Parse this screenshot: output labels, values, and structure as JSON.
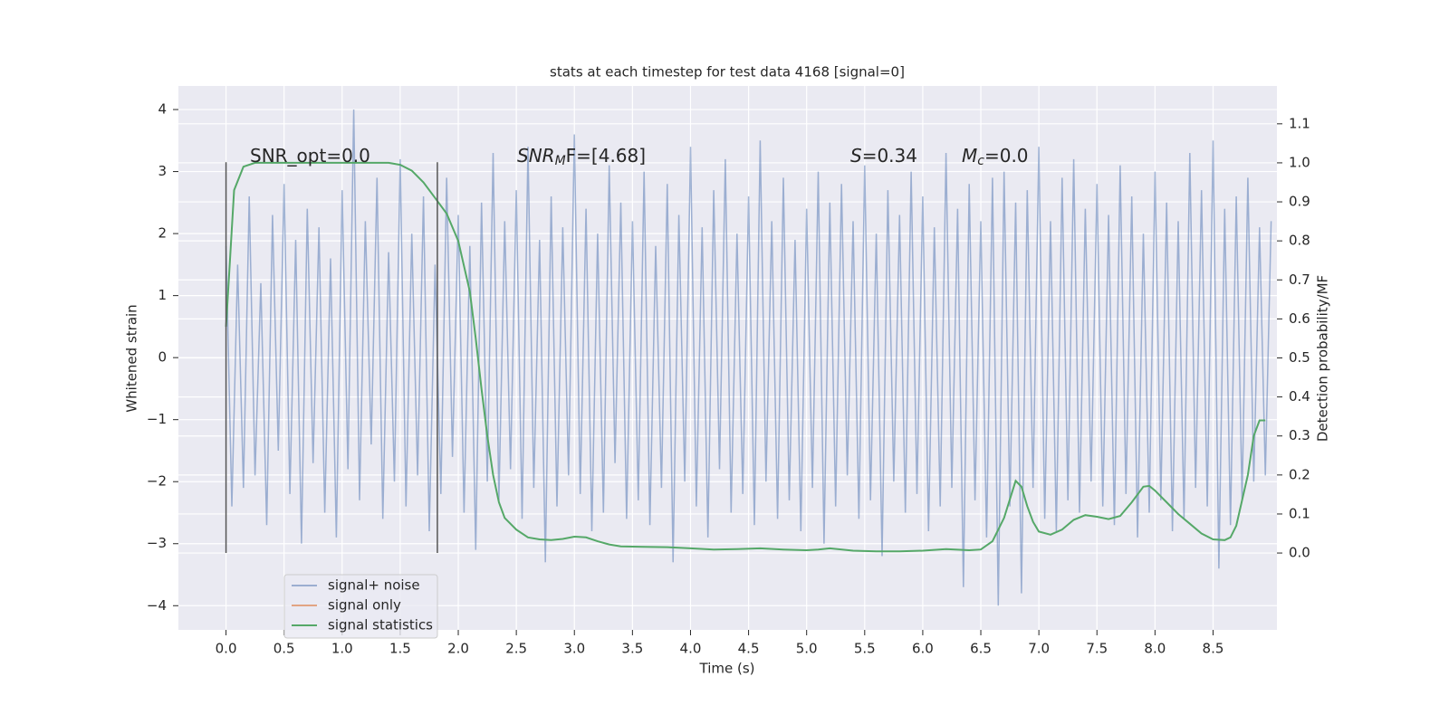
{
  "chart_data": {
    "type": "line",
    "title": "stats at each timestep for test data 4168 [signal=0]",
    "xlabel": "Time (s)",
    "ylabel": "Whitened strain",
    "y2label": "Detection probability/MF",
    "xlim": [
      -0.41,
      9.05
    ],
    "ylim": [
      -4.39,
      4.38
    ],
    "y2lim": [
      -0.197,
      1.197
    ],
    "xticks": [
      {
        "value": 0,
        "label": "0.0"
      },
      0.5,
      {
        "value": 1,
        "label": "1.0"
      },
      1.5,
      {
        "value": 2,
        "label": "2.0"
      },
      2.5,
      {
        "value": 3,
        "label": "3.0"
      },
      3.5,
      {
        "value": 4,
        "label": "4.0"
      },
      4.5,
      {
        "value": 5,
        "label": "5.0"
      },
      5.5,
      {
        "value": 6,
        "label": "6.0"
      },
      6.5,
      {
        "value": 7,
        "label": "7.0"
      },
      7.5,
      {
        "value": 8,
        "label": "8.0"
      },
      8.5
    ],
    "yticks": [
      {
        "value": -4,
        "label": "−4"
      },
      {
        "value": -3,
        "label": "−3"
      },
      {
        "value": -2,
        "label": "−2"
      },
      {
        "value": -1,
        "label": "−1"
      },
      0,
      1,
      2,
      3,
      4
    ],
    "y2ticks": [
      {
        "value": 0,
        "label": "0.0"
      },
      0.1,
      0.2,
      0.3,
      0.4,
      0.5,
      0.6,
      0.7,
      0.8,
      0.9,
      {
        "value": 1,
        "label": "1.0"
      },
      1.1
    ],
    "grid": true,
    "legend": "lower left",
    "annotations": [
      {
        "base": "SNR_opt=0.0",
        "math": false
      },
      {
        "base": "SNR",
        "sub": "M",
        "tail": "F=[4.68]",
        "math": true
      },
      {
        "base": "S",
        "tail": "=0.34",
        "math": true
      },
      {
        "base": "M",
        "sub": "c",
        "tail": "=0.0",
        "math": true
      }
    ],
    "vlines": {
      "x": [
        0,
        1.82
      ],
      "ymin": -3.15,
      "ymax": 3.15,
      "color": "#555555"
    },
    "series": [
      {
        "name": "signal+ noise",
        "color": "#4c72b0",
        "opacity": 0.5,
        "axis": "y",
        "x": [
          0,
          0.05,
          0.1,
          0.15,
          0.2,
          0.25,
          0.3,
          0.35,
          0.4,
          0.45,
          0.5,
          0.55,
          0.6,
          0.65,
          0.7,
          0.75,
          0.8,
          0.85,
          0.9,
          0.95,
          1,
          1.05,
          1.1,
          1.15,
          1.2,
          1.25,
          1.3,
          1.35,
          1.4,
          1.45,
          1.5,
          1.55,
          1.6,
          1.65,
          1.7,
          1.75,
          1.8,
          1.85,
          1.9,
          1.95,
          2,
          2.05,
          2.1,
          2.15,
          2.2,
          2.25,
          2.3,
          2.35,
          2.4,
          2.45,
          2.5,
          2.55,
          2.6,
          2.65,
          2.7,
          2.75,
          2.8,
          2.85,
          2.9,
          2.95,
          3,
          3.05,
          3.1,
          3.15,
          3.2,
          3.25,
          3.3,
          3.35,
          3.4,
          3.45,
          3.5,
          3.55,
          3.6,
          3.65,
          3.7,
          3.75,
          3.8,
          3.85,
          3.9,
          3.95,
          4,
          4.05,
          4.1,
          4.15,
          4.2,
          4.25,
          4.3,
          4.35,
          4.4,
          4.45,
          4.5,
          4.55,
          4.6,
          4.65,
          4.7,
          4.75,
          4.8,
          4.85,
          4.9,
          4.95,
          5,
          5.05,
          5.1,
          5.15,
          5.2,
          5.25,
          5.3,
          5.35,
          5.4,
          5.45,
          5.5,
          5.55,
          5.6,
          5.65,
          5.7,
          5.75,
          5.8,
          5.85,
          5.9,
          5.95,
          6,
          6.05,
          6.1,
          6.15,
          6.2,
          6.25,
          6.3,
          6.35,
          6.4,
          6.45,
          6.5,
          6.55,
          6.6,
          6.65,
          6.7,
          6.75,
          6.8,
          6.85,
          6.9,
          6.95,
          7,
          7.05,
          7.1,
          7.15,
          7.2,
          7.25,
          7.3,
          7.35,
          7.4,
          7.45,
          7.5,
          7.55,
          7.6,
          7.65,
          7.7,
          7.75,
          7.8,
          7.85,
          7.9,
          7.95,
          8,
          8.05,
          8.1,
          8.15,
          8.2,
          8.25,
          8.3,
          8.35,
          8.4,
          8.45,
          8.5,
          8.55,
          8.6,
          8.65,
          8.7,
          8.75,
          8.8,
          8.85,
          8.9,
          8.95,
          9
        ],
        "values": [
          1.8,
          -2.4,
          1.5,
          -2.1,
          2.6,
          -1.9,
          1.2,
          -2.7,
          2.3,
          -1.5,
          2.8,
          -2.2,
          1.9,
          -3.0,
          2.4,
          -1.7,
          2.1,
          -2.5,
          1.6,
          -2.9,
          2.7,
          -1.8,
          4.0,
          -2.3,
          2.2,
          -1.4,
          2.9,
          -2.6,
          1.7,
          -2.0,
          3.2,
          -2.4,
          2.0,
          -1.9,
          2.6,
          -2.8,
          1.5,
          -2.2,
          2.9,
          -1.6,
          2.3,
          -2.5,
          1.8,
          -3.1,
          2.5,
          -2.0,
          3.3,
          -2.3,
          2.2,
          -1.8,
          2.7,
          -2.6,
          3.4,
          -2.1,
          1.9,
          -3.3,
          2.6,
          -2.4,
          2.1,
          -1.9,
          3.6,
          -2.2,
          2.4,
          -2.8,
          2.0,
          -2.5,
          3.1,
          -1.7,
          2.5,
          -2.6,
          2.2,
          -2.3,
          3.0,
          -2.7,
          1.8,
          -2.1,
          2.8,
          -3.3,
          2.3,
          -2.0,
          3.4,
          -2.4,
          2.1,
          -2.9,
          2.7,
          -1.8,
          3.2,
          -2.5,
          2.0,
          -2.2,
          2.6,
          -2.7,
          3.5,
          -2.0,
          2.2,
          -2.6,
          2.9,
          -2.3,
          1.9,
          -2.8,
          2.4,
          -2.1,
          3.0,
          -3.0,
          2.5,
          -2.4,
          2.8,
          -1.9,
          2.2,
          -2.6,
          3.1,
          -2.3,
          2.0,
          -3.2,
          2.7,
          -2.0,
          2.3,
          -2.5,
          3.0,
          -2.2,
          2.6,
          -2.8,
          2.1,
          -2.4,
          3.3,
          -2.1,
          2.4,
          -3.7,
          2.8,
          -2.3,
          2.2,
          -2.9,
          2.9,
          -4.0,
          3.0,
          -2.4,
          2.5,
          -3.8,
          2.7,
          -2.1,
          3.4,
          -2.6,
          2.2,
          -2.8,
          2.9,
          -2.3,
          3.2,
          -2.5,
          2.4,
          -2.0,
          2.8,
          -2.4,
          2.3,
          -2.7,
          3.1,
          -2.2,
          2.6,
          -2.9,
          2.0,
          -2.5,
          3.0,
          -2.3,
          2.5,
          -2.8,
          2.2,
          -2.6,
          3.3,
          -2.1,
          2.7,
          -2.4,
          3.5,
          -3.4,
          2.4,
          -2.7,
          2.6,
          -2.3,
          2.9,
          -2.0,
          2.1,
          -1.9,
          2.2
        ]
      },
      {
        "name": "signal only",
        "color": "#dd8452",
        "opacity": 0.7,
        "axis": "y",
        "x": [],
        "values": []
      },
      {
        "name": "signal statistics",
        "color": "#55a868",
        "opacity": 1,
        "axis": "y2",
        "x": [
          0,
          0.07,
          0.15,
          0.25,
          0.5,
          1,
          1.4,
          1.5,
          1.6,
          1.7,
          1.8,
          1.9,
          2,
          2.1,
          2.15,
          2.2,
          2.25,
          2.3,
          2.35,
          2.4,
          2.5,
          2.6,
          2.7,
          2.8,
          2.9,
          3,
          3.1,
          3.2,
          3.3,
          3.4,
          3.6,
          3.8,
          4,
          4.2,
          4.4,
          4.6,
          4.8,
          5,
          5.1,
          5.2,
          5.4,
          5.6,
          5.8,
          6,
          6.2,
          6.4,
          6.5,
          6.6,
          6.7,
          6.8,
          6.85,
          6.9,
          6.95,
          7,
          7.1,
          7.2,
          7.3,
          7.4,
          7.5,
          7.6,
          7.7,
          7.8,
          7.9,
          7.95,
          8,
          8.1,
          8.2,
          8.3,
          8.4,
          8.5,
          8.6,
          8.65,
          8.7,
          8.8,
          8.85,
          8.9,
          8.95
        ],
        "values": [
          0.58,
          0.93,
          0.99,
          1.0,
          1.0,
          1.0,
          1.0,
          0.995,
          0.98,
          0.95,
          0.91,
          0.87,
          0.8,
          0.67,
          0.55,
          0.42,
          0.3,
          0.2,
          0.13,
          0.09,
          0.06,
          0.04,
          0.035,
          0.033,
          0.036,
          0.042,
          0.04,
          0.03,
          0.022,
          0.017,
          0.016,
          0.015,
          0.012,
          0.009,
          0.01,
          0.012,
          0.009,
          0.007,
          0.009,
          0.012,
          0.006,
          0.004,
          0.004,
          0.006,
          0.01,
          0.007,
          0.009,
          0.03,
          0.09,
          0.185,
          0.17,
          0.12,
          0.08,
          0.055,
          0.047,
          0.06,
          0.085,
          0.097,
          0.093,
          0.087,
          0.095,
          0.13,
          0.17,
          0.172,
          0.16,
          0.13,
          0.1,
          0.075,
          0.05,
          0.035,
          0.033,
          0.04,
          0.07,
          0.2,
          0.3,
          0.34,
          0.34
        ]
      }
    ]
  }
}
